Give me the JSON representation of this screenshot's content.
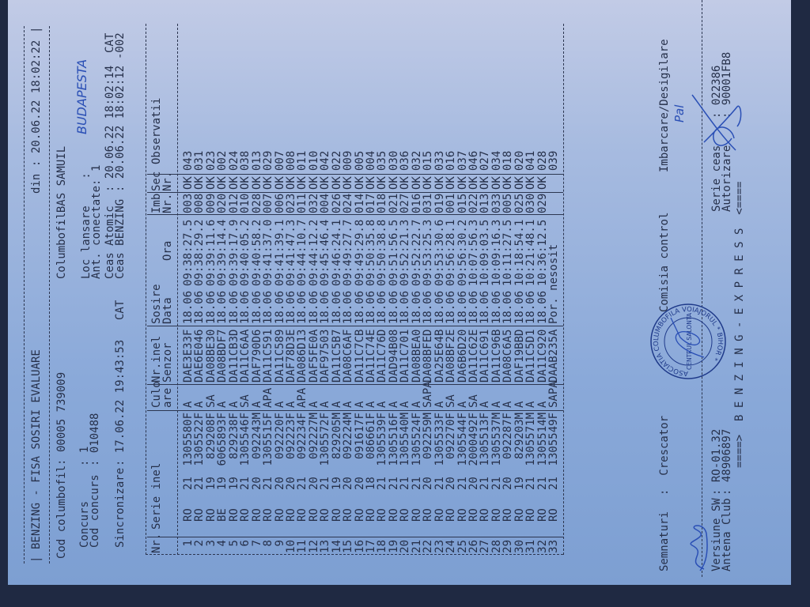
{
  "header": {
    "title": "BENZING - FISA SOSIRI EVALUARE",
    "din_label": "din",
    "din_value": "20.06.22 18:02:22",
    "cod_columbofil_label": "Cod columbofil:",
    "cod_columbofil_value": "00005 739009",
    "columbofil_label": "Columbofil",
    "columbofil_value": "BAS SAMUIL",
    "concurs_label": "Concurs",
    "concurs_value": "1",
    "cod_concurs_label": "Cod concurs",
    "cod_concurs_value": "010488",
    "loc_lansare_label": "Loc lansare",
    "loc_lansare_handwritten": "BUDAPESTA",
    "ant_conectate_label": "Ant. conectate:",
    "ant_conectate_value": "1",
    "sincronizare_label": "Sincronizare",
    "sincronizare_value": "17.06.22 19:43:53",
    "sincronizare_tz": "CAT",
    "ceas_atomic_label": "Ceas Atomic",
    "ceas_atomic_value": "20.06.22 18:02:14",
    "ceas_atomic_tz": "CAT",
    "ceas_benzing_label": "Ceas BENZING",
    "ceas_benzing_value": "20.06.22 18:02:12",
    "ceas_benzing_diff": "-002"
  },
  "table": {
    "headers": {
      "nr": "Nr.",
      "serie": "Serie inel",
      "culo1": "Culo",
      "culo2": "are",
      "senzor1": "Nr.inel",
      "senzor2": "Senzor",
      "sosire": "Sosire",
      "data": "Data",
      "ora": "Ora",
      "imb1": "Imb",
      "imb2": "Nr.",
      "sec1": "Sec",
      "sec2": "Nr.",
      "obs": "Observatii"
    },
    "rows": [
      [
        "1",
        "RO",
        "21",
        "1305580F",
        "A",
        "DAE3E33F",
        "18.06",
        "09:38:27.5",
        "003",
        "OK",
        "043"
      ],
      [
        "2",
        "RO",
        "21",
        "1305522F",
        "A",
        "DAE6E046",
        "18.06",
        "09:38:29.2",
        "008",
        "OK",
        "031"
      ],
      [
        "3",
        "RO",
        "19",
        "829208F",
        "SA",
        "DA08BE30",
        "18.06",
        "09:39:11.6",
        "009",
        "OK",
        "023"
      ],
      [
        "4",
        "BE",
        "19",
        "6065893F",
        "A",
        "DA08BDF7",
        "18.06",
        "09:39:14.4",
        "020",
        "OK",
        "002"
      ],
      [
        "5",
        "RO",
        "19",
        "829238F",
        "A",
        "DA11CB3D",
        "18.06",
        "09:39:17.9",
        "012",
        "OK",
        "024"
      ],
      [
        "6",
        "RO",
        "21",
        "1305546F",
        "SA",
        "DA11C6AA",
        "18.06",
        "09:40:05.2",
        "010",
        "OK",
        "038"
      ],
      [
        "7",
        "RO",
        "20",
        "092243M",
        "A",
        "DAF790D6",
        "18.06",
        "09:40:58.2",
        "028",
        "OK",
        "013"
      ],
      [
        "8",
        "RO",
        "21",
        "1305515F",
        "APA",
        "DA11C591",
        "18.06",
        "09:41:37.0",
        "007",
        "OK",
        "029"
      ],
      [
        "9",
        "RO",
        "20",
        "092220F",
        "A",
        "DA11C589",
        "18.06",
        "09:41:39.1",
        "006",
        "OK",
        "007"
      ],
      [
        "10",
        "RO",
        "20",
        "092223F",
        "A",
        "DAF78D3E",
        "18.06",
        "09:41:47.3",
        "023",
        "OK",
        "008"
      ],
      [
        "11",
        "RO",
        "21",
        "092234F",
        "APA",
        "DA086D13",
        "18.06",
        "09:44:10.7",
        "011",
        "OK",
        "011"
      ],
      [
        "12",
        "RO",
        "20",
        "092227M",
        "A",
        "DAF5FE0A",
        "18.06",
        "09:44:12.2",
        "032",
        "OK",
        "010"
      ],
      [
        "13",
        "RO",
        "21",
        "1305572F",
        "A",
        "DAF97503",
        "18.06",
        "09:45:46.4",
        "004",
        "OK",
        "042"
      ],
      [
        "14",
        "RO",
        "19",
        "829205M",
        "A",
        "DA11C5B7",
        "18.06",
        "09:46:24.1",
        "026",
        "OK",
        "022"
      ],
      [
        "15",
        "RO",
        "20",
        "092224M",
        "A",
        "DA08C6AF",
        "18.06",
        "09:49:27.7",
        "024",
        "OK",
        "009"
      ],
      [
        "16",
        "RO",
        "20",
        "091617F",
        "A",
        "DA11C7CB",
        "18.06",
        "09:49:29.8",
        "014",
        "OK",
        "005"
      ],
      [
        "17",
        "RO",
        "18",
        "086661F",
        "A",
        "DA11C74E",
        "18.06",
        "09:50:35.8",
        "017",
        "OK",
        "004"
      ],
      [
        "18",
        "RO",
        "21",
        "1305539F",
        "A",
        "DA11C76D",
        "18.06",
        "09:50:38.8",
        "018",
        "OK",
        "035"
      ],
      [
        "19",
        "RO",
        "21",
        "1305516F",
        "A",
        "DAD94B08",
        "18.06",
        "09:51:56.5",
        "021",
        "OK",
        "030"
      ],
      [
        "20",
        "RO",
        "21",
        "1305540M",
        "A",
        "DA11C701",
        "18.06",
        "09:52:21.3",
        "027",
        "OK",
        "036"
      ],
      [
        "21",
        "RO",
        "21",
        "1305524F",
        "A",
        "DA08BEA0",
        "18.06",
        "09:52:22.7",
        "016",
        "OK",
        "032"
      ],
      [
        "22",
        "RO",
        "20",
        "092259M",
        "SAPA",
        "DA08BFED",
        "18.06",
        "09:53:25.3",
        "031",
        "OK",
        "015"
      ],
      [
        "23",
        "RO",
        "21",
        "1305533F",
        "A",
        "DA25E64B",
        "18.06",
        "09:53:30.6",
        "019",
        "OK",
        "033"
      ],
      [
        "24",
        "RO",
        "20",
        "092270F",
        "SA",
        "DA08BF2E",
        "18.06",
        "09:56:28.1",
        "001",
        "OK",
        "016"
      ],
      [
        "25",
        "RO",
        "21",
        "1305544F",
        "A",
        "DA6B6D20",
        "18.06",
        "09:56:30.2",
        "015",
        "OK",
        "037"
      ],
      [
        "26",
        "RO",
        "20",
        "2000492F",
        "SA",
        "DA11C62E",
        "18.06",
        "10:07:56.3",
        "022",
        "OK",
        "046"
      ],
      [
        "27",
        "RO",
        "21",
        "1305513F",
        "A",
        "DA11C691",
        "18.06",
        "10:09:03.5",
        "013",
        "OK",
        "027"
      ],
      [
        "28",
        "RO",
        "21",
        "1305537M",
        "A",
        "DA11C96B",
        "18.06",
        "10:09:16.3",
        "033",
        "OK",
        "034"
      ],
      [
        "29",
        "RO",
        "20",
        "092287F",
        "A",
        "DA08C6A5",
        "18.06",
        "10:11:27.5",
        "005",
        "OK",
        "018"
      ],
      [
        "30",
        "RO",
        "19",
        "829203M",
        "A",
        "DAF19BBD",
        "18.06",
        "10:18:54.1",
        "025",
        "OK",
        "020"
      ],
      [
        "31",
        "RO",
        "21",
        "1305571M",
        "A",
        "DA11C5D1",
        "18.06",
        "10:21:48.1",
        "030",
        "OK",
        "041"
      ],
      [
        "32",
        "RO",
        "21",
        "1305514M",
        "A",
        "DA11C920",
        "18.06",
        "10:36:12.5",
        "029",
        "OK",
        "028"
      ],
      [
        "33",
        "RO",
        "21",
        "1305549F",
        "SAPA",
        "DAAB235A",
        "Por. nesosit",
        "",
        "",
        "",
        "039"
      ]
    ]
  },
  "footer": {
    "semnaturi_label": "Semnaturi",
    "crescator_label": ":  Crescator",
    "comisia_label": "Comisia control",
    "imbarcare_label": "Imbarcare/Desigilare",
    "handwritten_name": "Pal",
    "versiune_label": "Versiune SW",
    "versiune_value": ": RO-01.32",
    "antena_label": "Antena Club",
    "antena_value": ": 48906897",
    "serie_ceas_label": "Serie ceas",
    "serie_ceas_value": ": 022386",
    "autorizare_label": "Autorizare",
    "autorizare_value": ": 90001FB8",
    "brand_banner": "====>  B E N Z I N G - E X P R E S S  <====",
    "stamp_ring_text": "ASOCIATIA COLUMBOFILA VOIAJORUL * BIHOR *",
    "stamp_center_text": "CENTRUL SALONTA"
  },
  "colors": {
    "ink": "#26304a",
    "handwriting": "#2a4fb5",
    "paper": "#8aa9d9"
  }
}
